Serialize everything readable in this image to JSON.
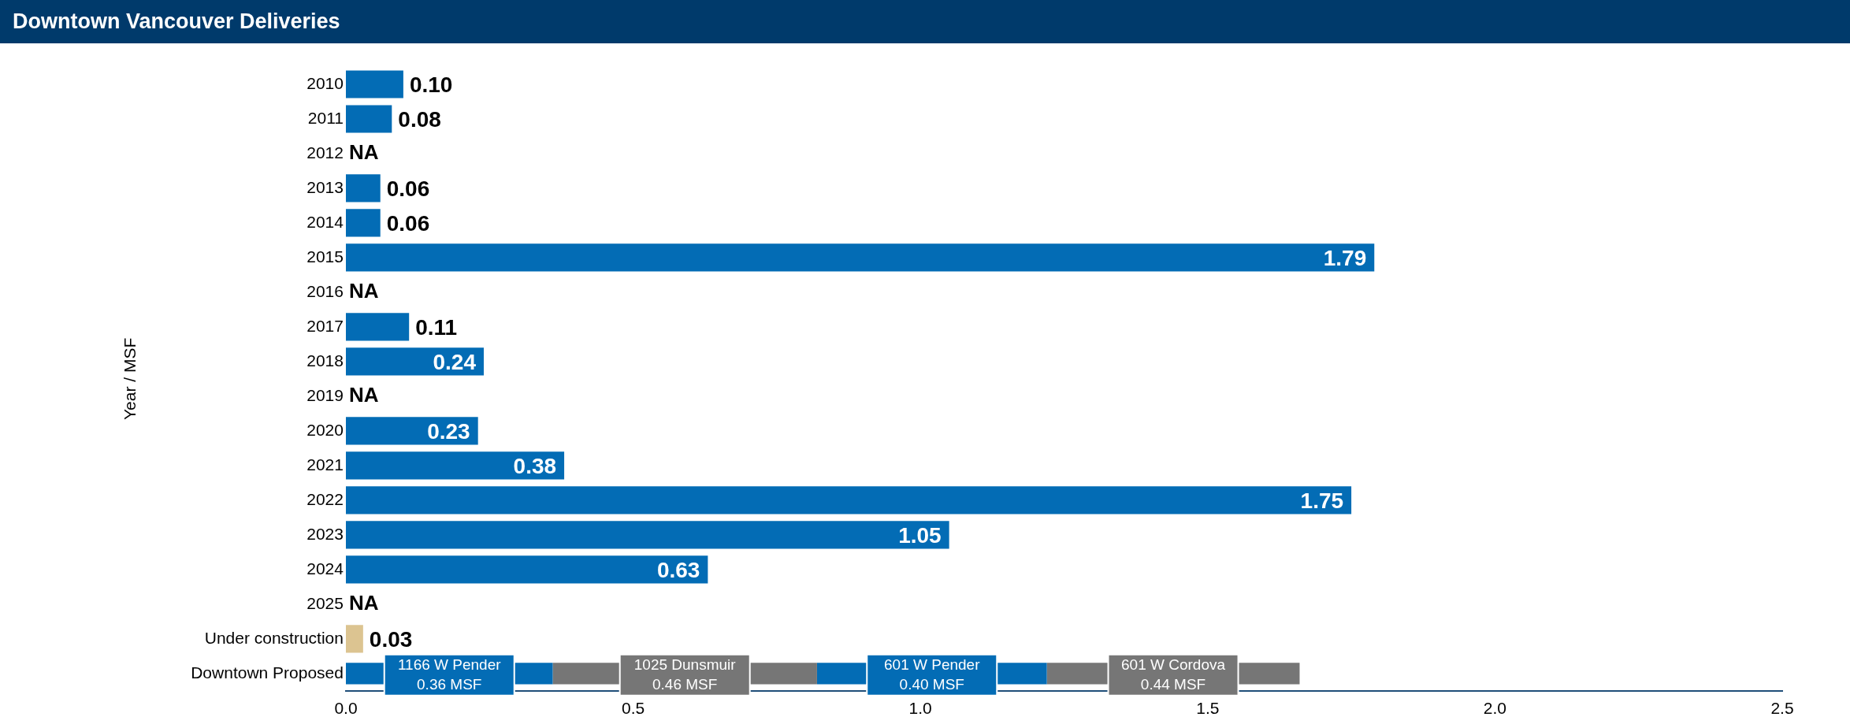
{
  "chart_data": {
    "type": "bar",
    "orientation": "horizontal",
    "stacked": true,
    "title": "Downtown Vancouver Deliveries",
    "ylabel": "Year / MSF",
    "categories": [
      "2010",
      "2011",
      "2012",
      "2013",
      "2014",
      "2015",
      "2016",
      "2017",
      "2018",
      "2019",
      "2020",
      "2021",
      "2022",
      "2023",
      "2024",
      "2025",
      "Under construction",
      "Downtown Proposed"
    ],
    "series": [
      {
        "colors": [
          "#036cb5",
          "#036cb5",
          "#036cb5",
          "#036cb5",
          "#036cb5",
          "#036cb5",
          "#036cb5",
          "#036cb5",
          "#036cb5",
          "#036cb5",
          "#036cb5",
          "#036cb5",
          "#036cb5",
          "#036cb5",
          "#036cb5",
          "#036cb5",
          "#dcc491",
          "#036cb5"
        ],
        "values": [
          0.1,
          0.08,
          null,
          0.06,
          0.06,
          1.79,
          null,
          0.11,
          0.24,
          null,
          0.23,
          0.38,
          1.75,
          1.05,
          0.63,
          null,
          0.03,
          null
        ],
        "value_labels": [
          "0.10",
          "0.08",
          "NA",
          "0.06",
          "0.06",
          "1.79",
          "NA",
          "0.11",
          "0.24",
          "NA",
          "0.23",
          "0.38",
          "1.75",
          "1.05",
          "0.63",
          "NA",
          "0.03",
          null
        ]
      },
      {
        "name": "1166 W Pender",
        "color": "#036cb5",
        "values": [
          null,
          null,
          null,
          null,
          null,
          null,
          null,
          null,
          null,
          null,
          null,
          null,
          null,
          null,
          null,
          null,
          null,
          0.36
        ],
        "value_labels": [
          null,
          null,
          null,
          null,
          null,
          null,
          null,
          null,
          null,
          null,
          null,
          null,
          null,
          null,
          null,
          null,
          null,
          "0.36 MSF"
        ]
      },
      {
        "name": "1025 Dunsmuir",
        "color": "#767676",
        "values": [
          null,
          null,
          null,
          null,
          null,
          null,
          null,
          null,
          null,
          null,
          null,
          null,
          null,
          null,
          null,
          null,
          null,
          0.46
        ],
        "value_labels": [
          null,
          null,
          null,
          null,
          null,
          null,
          null,
          null,
          null,
          null,
          null,
          null,
          null,
          null,
          null,
          null,
          null,
          "0.46 MSF"
        ]
      },
      {
        "name": "601 W Pender",
        "color": "#036cb5",
        "values": [
          null,
          null,
          null,
          null,
          null,
          null,
          null,
          null,
          null,
          null,
          null,
          null,
          null,
          null,
          null,
          null,
          null,
          0.4
        ],
        "value_labels": [
          null,
          null,
          null,
          null,
          null,
          null,
          null,
          null,
          null,
          null,
          null,
          null,
          null,
          null,
          null,
          null,
          null,
          "0.40 MSF"
        ]
      },
      {
        "name": "601 W Cordova",
        "color": "#767676",
        "values": [
          null,
          null,
          null,
          null,
          null,
          null,
          null,
          null,
          null,
          null,
          null,
          null,
          null,
          null,
          null,
          null,
          null,
          0.44
        ],
        "value_labels": [
          null,
          null,
          null,
          null,
          null,
          null,
          null,
          null,
          null,
          null,
          null,
          null,
          null,
          null,
          null,
          null,
          null,
          "0.44 MSF"
        ]
      }
    ],
    "xlim": [
      0,
      2.5
    ],
    "xticks": [
      {
        "value": 0,
        "label": "0.0"
      },
      {
        "value": 0.5,
        "label": "0.5"
      },
      {
        "value": 1,
        "label": "1.0"
      },
      {
        "value": 1.5,
        "label": "1.5"
      },
      {
        "value": 2,
        "label": "2.0"
      },
      {
        "value": 2.5,
        "label": "2.5"
      }
    ],
    "grid": false,
    "legend": false
  }
}
